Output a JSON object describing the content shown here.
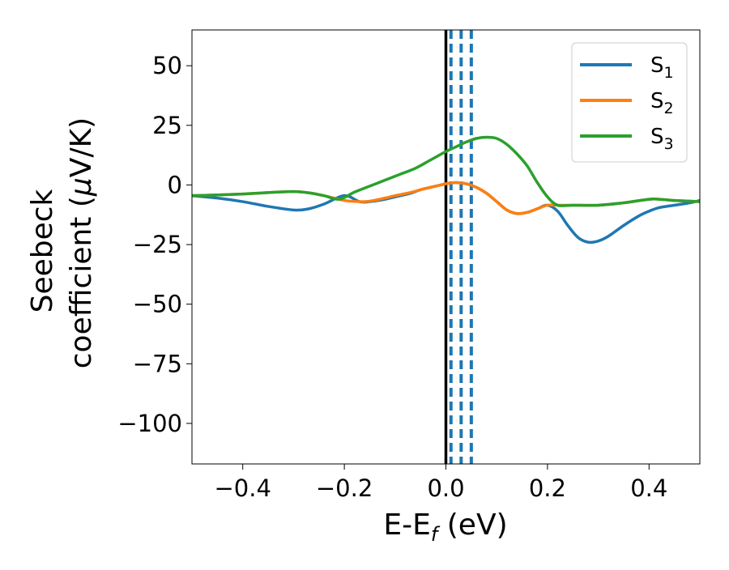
{
  "chart_data": {
    "type": "line",
    "title": "",
    "xlabel": {
      "main": "E-E",
      "sub": "f",
      "suffix": " (eV)"
    },
    "ylabel": {
      "line1": "Seebeck",
      "line2_main": "coefficient  (",
      "line2_mu": "μ",
      "line2_suffix": "V/K)"
    },
    "xlim": [
      -0.5,
      0.5
    ],
    "ylim": [
      -117,
      65
    ],
    "xticks": [
      -0.4,
      -0.2,
      0.0,
      0.2,
      0.4
    ],
    "xtick_labels": [
      "−0.4",
      "−0.2",
      "0.0",
      "0.2",
      "0.4"
    ],
    "yticks": [
      50,
      25,
      0,
      -25,
      -50,
      -75,
      -100
    ],
    "ytick_labels": [
      "50",
      "25",
      "0",
      "−25",
      "−50",
      "−75",
      "−100"
    ],
    "grid": false,
    "legend_position": "top-right",
    "vertical_lines": [
      {
        "x": 0.0,
        "style": "solid",
        "color": "#000000"
      },
      {
        "x": 0.01,
        "style": "dashed",
        "color": "#1f77b4"
      },
      {
        "x": 0.03,
        "style": "dashed",
        "color": "#1f77b4"
      },
      {
        "x": 0.05,
        "style": "dashed",
        "color": "#1f77b4"
      }
    ],
    "series": [
      {
        "name": "S",
        "subscript": "1",
        "color": "#1f77b4",
        "x": [
          -0.5,
          -0.45,
          -0.4,
          -0.35,
          -0.3,
          -0.27,
          -0.24,
          -0.2,
          -0.17,
          -0.15,
          -0.12,
          -0.1,
          -0.07,
          -0.05,
          -0.03,
          -0.01,
          0.0,
          0.02,
          0.04,
          0.06,
          0.08,
          0.1,
          0.12,
          0.14,
          0.16,
          0.18,
          0.2,
          0.22,
          0.24,
          0.26,
          0.28,
          0.3,
          0.32,
          0.35,
          0.38,
          0.4,
          0.42,
          0.45,
          0.48,
          0.5
        ],
        "y": [
          -4.5,
          -5.5,
          -7,
          -9,
          -10.5,
          -10,
          -8,
          -4.5,
          -7,
          -7,
          -6,
          -5,
          -3.5,
          -2,
          -1,
          0,
          0.5,
          1,
          0.5,
          -1,
          -3.5,
          -7,
          -10.5,
          -12,
          -11.5,
          -10,
          -8.5,
          -11,
          -17,
          -22,
          -24,
          -23.5,
          -21.5,
          -17,
          -13,
          -11,
          -9.5,
          -8.5,
          -7.5,
          -6.5
        ]
      },
      {
        "name": "S",
        "subscript": "2",
        "color": "#ff7f0e",
        "x": [
          -0.5,
          -0.45,
          -0.4,
          -0.35,
          -0.3,
          -0.27,
          -0.24,
          -0.2,
          -0.17,
          -0.15,
          -0.12,
          -0.1,
          -0.07,
          -0.05,
          -0.03,
          -0.01,
          0.0,
          0.02,
          0.04,
          0.06,
          0.08,
          0.1,
          0.12,
          0.14,
          0.16,
          0.18,
          0.2,
          0.22,
          0.25,
          0.3,
          0.35,
          0.4,
          0.42,
          0.45,
          0.5
        ],
        "y": [
          -4.5,
          -4.2,
          -3.8,
          -3.2,
          -2.8,
          -3.3,
          -4.5,
          -6.5,
          -7,
          -6.8,
          -5.5,
          -4.5,
          -3.2,
          -2,
          -1,
          0,
          0.5,
          1,
          0.5,
          -1,
          -3.5,
          -7,
          -10.5,
          -12,
          -11.5,
          -10,
          -8.5,
          -8.5,
          -8.5,
          -8.5,
          -7.5,
          -6,
          -6,
          -6.5,
          -7
        ]
      },
      {
        "name": "S",
        "subscript": "3",
        "color": "#2ca02c",
        "x": [
          -0.5,
          -0.45,
          -0.4,
          -0.35,
          -0.3,
          -0.27,
          -0.24,
          -0.21,
          -0.18,
          -0.15,
          -0.12,
          -0.09,
          -0.06,
          -0.03,
          0.0,
          0.02,
          0.04,
          0.06,
          0.08,
          0.1,
          0.12,
          0.14,
          0.16,
          0.18,
          0.2,
          0.22,
          0.25,
          0.3,
          0.35,
          0.4,
          0.42,
          0.45,
          0.5
        ],
        "y": [
          -4.5,
          -4.2,
          -3.8,
          -3.2,
          -2.8,
          -3.3,
          -4.5,
          -6,
          -3,
          -0.5,
          2,
          4.5,
          7,
          10.5,
          14,
          16,
          18,
          19.5,
          20,
          19.5,
          17,
          13,
          8,
          1,
          -5,
          -8.5,
          -8.5,
          -8.5,
          -7.5,
          -6,
          -6,
          -6.5,
          -7
        ]
      }
    ]
  }
}
